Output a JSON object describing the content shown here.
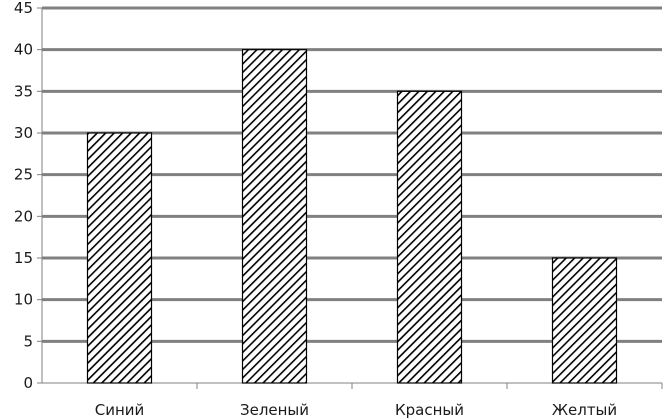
{
  "chart_data": {
    "type": "bar",
    "categories": [
      "Синий",
      "Зеленый",
      "Красный",
      "Желтый"
    ],
    "values": [
      30,
      40,
      35,
      15
    ],
    "title": "",
    "xlabel": "",
    "ylabel": "",
    "ylim": [
      0,
      45
    ],
    "yticks": [
      0,
      5,
      10,
      15,
      20,
      25,
      30,
      35,
      40,
      45
    ],
    "grid": true,
    "legend": "none",
    "bar_fill": "diagonal-hatch",
    "colors": {
      "bar_stroke": "#000000",
      "hatch": "#000000",
      "grid": "#808080",
      "axis": "#808080"
    }
  }
}
